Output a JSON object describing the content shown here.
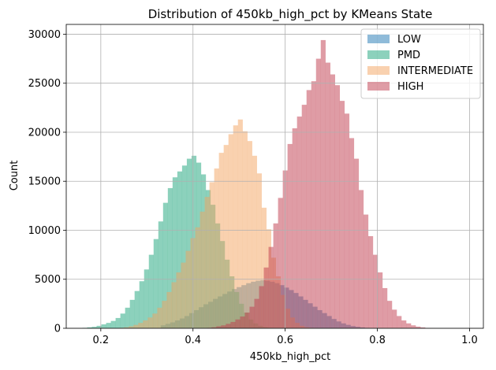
{
  "chart_data": {
    "type": "histogram",
    "title": "Distribution of 450kb_high_pct by KMeans State",
    "xlabel": "450kb_high_pct",
    "ylabel": "Count",
    "xlim": [
      0.125,
      1.03
    ],
    "ylim": [
      0,
      31000
    ],
    "xticks": [
      0.2,
      0.4,
      0.6,
      0.8,
      1.0
    ],
    "xtick_labels": [
      "0.2",
      "0.4",
      "0.6",
      "0.8",
      "1.0"
    ],
    "yticks": [
      0,
      5000,
      10000,
      15000,
      20000,
      25000,
      30000
    ],
    "ytick_labels": [
      "0",
      "5000",
      "10000",
      "15000",
      "20000",
      "25000",
      "30000"
    ],
    "grid": true,
    "legend_position": "top-right",
    "series": [
      {
        "name": "LOW",
        "color": "#1f77b4",
        "bin_start": 0.33,
        "bin_width": 0.0103,
        "counts": [
          300,
          450,
          600,
          800,
          1000,
          1250,
          1550,
          1850,
          2150,
          2450,
          2700,
          3000,
          3250,
          3500,
          3750,
          4000,
          4200,
          4400,
          4600,
          4750,
          4850,
          4900,
          4850,
          4750,
          4600,
          4400,
          4150,
          3900,
          3600,
          3250,
          2900,
          2550,
          2200,
          1850,
          1550,
          1250,
          950,
          700,
          500,
          350,
          230,
          150,
          90,
          50,
          25
        ]
      },
      {
        "name": "PMD",
        "color": "#1aa37a",
        "bin_start": 0.16,
        "bin_width": 0.0103,
        "counts": [
          50,
          100,
          150,
          250,
          400,
          550,
          750,
          1050,
          1500,
          2100,
          2900,
          3800,
          4800,
          6000,
          7500,
          9100,
          10900,
          12800,
          14300,
          15400,
          16000,
          16600,
          17300,
          17600,
          16900,
          15700,
          14100,
          12600,
          10700,
          8900,
          7000,
          5300,
          3700,
          2500,
          1600,
          900,
          500,
          250,
          120,
          60,
          30
        ]
      },
      {
        "name": "INTERMEDIATE",
        "color": "#f4a460",
        "bin_start": 0.24,
        "bin_width": 0.0103,
        "counts": [
          50,
          100,
          200,
          350,
          550,
          800,
          1100,
          1500,
          2100,
          2800,
          3700,
          4700,
          5700,
          6700,
          7900,
          9200,
          10300,
          11900,
          13400,
          14900,
          16300,
          17900,
          18700,
          19800,
          20700,
          21300,
          20100,
          19100,
          17600,
          15800,
          12300,
          10100,
          7200,
          5300,
          3400,
          2000,
          1100,
          550,
          250,
          100,
          50
        ]
      },
      {
        "name": "HIGH",
        "color": "#c0394b",
        "bin_start": 0.43,
        "bin_width": 0.0103,
        "counts": [
          50,
          100,
          200,
          300,
          450,
          650,
          900,
          1200,
          1600,
          2200,
          3000,
          4300,
          6200,
          8300,
          10700,
          13300,
          16100,
          18800,
          20400,
          21600,
          22800,
          24300,
          25200,
          27500,
          29400,
          27100,
          25900,
          24800,
          23200,
          21900,
          19400,
          17300,
          14100,
          11600,
          9400,
          7500,
          5700,
          4100,
          2800,
          1900,
          1250,
          800,
          500,
          300,
          170,
          90,
          40,
          20
        ]
      }
    ]
  }
}
